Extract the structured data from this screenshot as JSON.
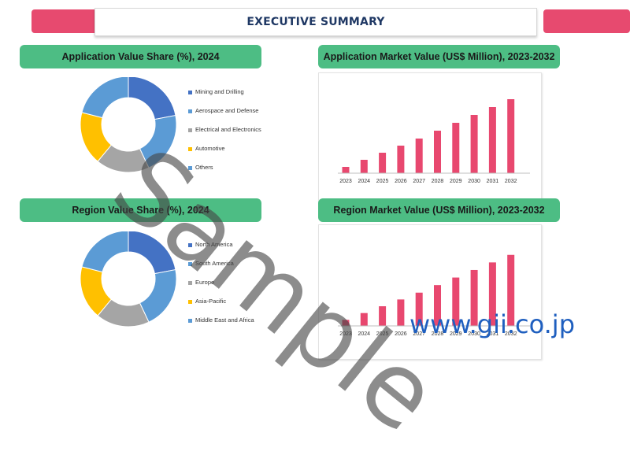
{
  "header": {
    "title": "EXECUTIVE SUMMARY"
  },
  "colors": {
    "accent": "#e74a6f",
    "pill": "#4dbd84",
    "title": "#1f3864",
    "bar": "#e8486f"
  },
  "watermark": {
    "text": "Sample",
    "site": "www.gii.co.jp"
  },
  "chart_data": [
    {
      "type": "pie",
      "title": "Application Value Share (%), 2024",
      "categories": [
        "Mining and Drilling",
        "Aerospace and Defense",
        "Electrical and Electronics",
        "Automotive",
        "Others"
      ],
      "values": [
        22,
        21,
        18,
        18,
        21
      ],
      "colors": [
        "#4472c4",
        "#5b9bd5",
        "#a5a5a5",
        "#ffc000",
        "#5b9bd5"
      ],
      "legend_labels": [
        "Mining and Drilling",
        "Aerospace and Defense",
        "Electrical and Electronics",
        "Automotive",
        "Others"
      ]
    },
    {
      "type": "bar",
      "title": "Application Market Value (US$ Million), 2023-2032",
      "categories": [
        "2023",
        "2024",
        "2025",
        "2026",
        "2027",
        "2028",
        "2029",
        "2030",
        "2031",
        "2032"
      ],
      "values": [
        8,
        17,
        26,
        35,
        44,
        54,
        64,
        74,
        84,
        94
      ],
      "ylim": [
        0,
        100
      ]
    },
    {
      "type": "pie",
      "title": "Region Value Share (%), 2024",
      "categories": [
        "North America",
        "South America",
        "Europe",
        "Asia-Pacific",
        "Middle East and Africa"
      ],
      "values": [
        22,
        21,
        18,
        18,
        21
      ],
      "colors": [
        "#4472c4",
        "#5b9bd5",
        "#a5a5a5",
        "#ffc000",
        "#5b9bd5"
      ],
      "legend_labels": [
        "North America",
        "South America",
        "Europe",
        "Asia-Pacific",
        "Middle East and Africa"
      ]
    },
    {
      "type": "bar",
      "title": "Region Market Value (US$ Million), 2023-2032",
      "categories": [
        "2023",
        "2024",
        "2025",
        "2026",
        "2027",
        "2028",
        "2029",
        "2030",
        "2031",
        "2032"
      ],
      "values": [
        8,
        17,
        26,
        35,
        44,
        54,
        64,
        74,
        84,
        94
      ],
      "ylim": [
        0,
        100
      ]
    }
  ]
}
